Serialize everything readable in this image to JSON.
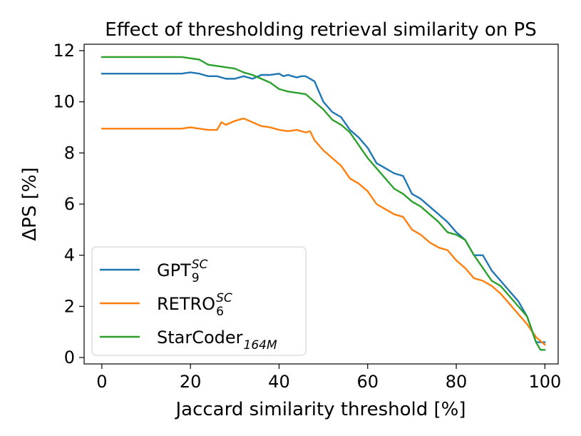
{
  "chart_data": {
    "type": "line",
    "title": "Effect of thresholding retrieval similarity on PS",
    "xlabel": "Jaccard similarity threshold [%]",
    "ylabel": "ΔPS [%]",
    "xlim": [
      -4,
      103
    ],
    "ylim": [
      -0.25,
      12.25
    ],
    "xticks": [
      "0",
      "20",
      "40",
      "60",
      "80",
      "100"
    ],
    "yticks": [
      "0",
      "2",
      "4",
      "6",
      "8",
      "10",
      "12"
    ],
    "grid": false,
    "legend_position": "lower-left",
    "series": [
      {
        "name": "GPT",
        "name_sub": "9",
        "name_sup": "SC",
        "color": "#1f77b4",
        "x": [
          0,
          10,
          18,
          20,
          22,
          24,
          26,
          28,
          30,
          32,
          34,
          36,
          38,
          40,
          41,
          42,
          43,
          44,
          45,
          46,
          48,
          50,
          52,
          54,
          56,
          58,
          60,
          62,
          64,
          66,
          68,
          70,
          72,
          74,
          76,
          78,
          80,
          82,
          84,
          86,
          88,
          90,
          92,
          94,
          96,
          98,
          100
        ],
        "y": [
          11.1,
          11.1,
          11.1,
          11.15,
          11.1,
          11.0,
          11.0,
          10.9,
          10.9,
          11.0,
          10.9,
          11.05,
          11.05,
          11.1,
          11.0,
          11.05,
          11.0,
          10.95,
          11.0,
          11.0,
          10.8,
          10.0,
          9.6,
          9.4,
          8.9,
          8.6,
          8.2,
          7.6,
          7.4,
          7.2,
          7.1,
          6.4,
          6.2,
          5.9,
          5.6,
          5.3,
          4.9,
          4.6,
          4.0,
          4.0,
          3.4,
          3.0,
          2.6,
          2.2,
          1.6,
          0.6,
          0.6
        ]
      },
      {
        "name": "RETRO",
        "name_sub": "6",
        "name_sup": "SC",
        "color": "#ff7f0e",
        "x": [
          0,
          10,
          17,
          18,
          20,
          22,
          24,
          26,
          27,
          28,
          30,
          32,
          34,
          36,
          38,
          40,
          42,
          44,
          46,
          47,
          48,
          50,
          52,
          54,
          56,
          58,
          60,
          62,
          64,
          66,
          68,
          70,
          72,
          74,
          76,
          78,
          80,
          82,
          84,
          86,
          88,
          90,
          92,
          94,
          96,
          98,
          100
        ],
        "y": [
          8.95,
          8.95,
          8.95,
          8.95,
          9.0,
          8.95,
          8.9,
          8.9,
          9.2,
          9.1,
          9.25,
          9.35,
          9.2,
          9.05,
          9.0,
          8.9,
          8.85,
          8.9,
          8.8,
          8.85,
          8.5,
          8.1,
          7.8,
          7.5,
          7.0,
          6.8,
          6.5,
          6.0,
          5.8,
          5.6,
          5.5,
          5.0,
          4.8,
          4.5,
          4.3,
          4.2,
          3.8,
          3.5,
          3.1,
          3.0,
          2.8,
          2.5,
          2.1,
          1.7,
          1.3,
          0.8,
          0.5
        ]
      },
      {
        "name": "StarCoder",
        "name_sub": "164M",
        "name_sup": "",
        "color": "#2ca02c",
        "x": [
          0,
          10,
          18,
          20,
          22,
          24,
          26,
          28,
          30,
          32,
          34,
          36,
          38,
          40,
          42,
          44,
          46,
          48,
          50,
          52,
          54,
          56,
          58,
          60,
          62,
          64,
          66,
          68,
          70,
          72,
          74,
          76,
          78,
          80,
          82,
          84,
          86,
          88,
          90,
          92,
          94,
          96,
          98,
          99,
          100
        ],
        "y": [
          11.75,
          11.75,
          11.75,
          11.7,
          11.65,
          11.45,
          11.4,
          11.35,
          11.3,
          11.15,
          11.05,
          10.9,
          10.75,
          10.5,
          10.4,
          10.35,
          10.3,
          10.0,
          9.7,
          9.3,
          9.1,
          8.8,
          8.3,
          7.8,
          7.4,
          7.0,
          6.6,
          6.4,
          6.1,
          5.9,
          5.6,
          5.3,
          4.9,
          4.8,
          4.6,
          4.0,
          3.5,
          3.0,
          2.8,
          2.4,
          2.0,
          1.6,
          0.6,
          0.3,
          0.3
        ]
      }
    ]
  }
}
